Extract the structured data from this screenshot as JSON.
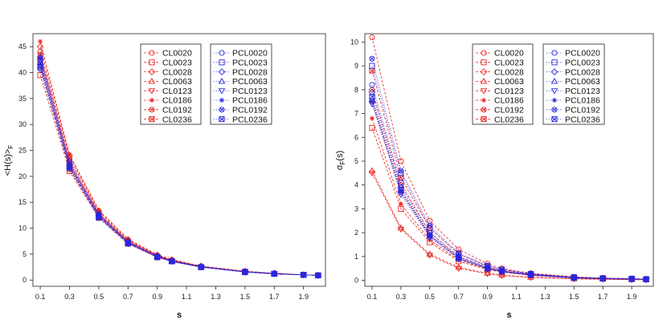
{
  "chart_data": [
    {
      "type": "line",
      "title": "",
      "xlabel": "s",
      "ylabel": "<H(s)>",
      "ylabel_sub": "F",
      "x": [
        0.1,
        0.3,
        0.5,
        0.7,
        0.9,
        1.0,
        1.2,
        1.5,
        1.7,
        1.9,
        2.0
      ],
      "xticks": [
        0.1,
        0.3,
        0.5,
        0.7,
        0.9,
        1.1,
        1.3,
        1.5,
        1.7,
        1.9
      ],
      "xtick_labels": [
        "0.1",
        "0.3",
        "0.5",
        "0.7",
        "0.9",
        "1.1",
        "1.3",
        "1.5",
        "1.7",
        "1.9"
      ],
      "yticks": [
        0,
        5,
        10,
        15,
        20,
        25,
        30,
        35,
        40,
        45
      ],
      "ytick_labels": [
        "0",
        "5",
        "10",
        "15",
        "20",
        "25",
        "30",
        "35",
        "40",
        "45"
      ],
      "xlim": [
        0.05,
        2.05
      ],
      "ylim": [
        -1.2,
        47.5
      ],
      "legend_position": "top-right",
      "series": [
        {
          "name": "CL0020",
          "group": "CL",
          "values": [
            44.0,
            23.5,
            13.0,
            7.6,
            4.7,
            3.8,
            2.6,
            1.6,
            1.3,
            1.0,
            0.9
          ]
        },
        {
          "name": "CL0023",
          "group": "CL",
          "values": [
            39.5,
            21.0,
            12.0,
            7.0,
            4.4,
            3.6,
            2.5,
            1.6,
            1.2,
            1.0,
            0.9
          ]
        },
        {
          "name": "CL0028",
          "group": "CL",
          "values": [
            45.0,
            24.0,
            13.3,
            7.8,
            4.8,
            3.9,
            2.7,
            1.7,
            1.3,
            1.0,
            0.9
          ]
        },
        {
          "name": "CL0063",
          "group": "CL",
          "values": [
            43.0,
            22.5,
            12.7,
            7.4,
            4.6,
            3.7,
            2.6,
            1.6,
            1.3,
            1.0,
            0.9
          ]
        },
        {
          "name": "CL0123",
          "group": "CL",
          "values": [
            42.0,
            22.0,
            12.5,
            7.3,
            4.5,
            3.7,
            2.5,
            1.6,
            1.2,
            1.0,
            0.9
          ]
        },
        {
          "name": "CL0186",
          "group": "CL",
          "values": [
            46.0,
            24.2,
            13.5,
            7.9,
            4.9,
            4.0,
            2.7,
            1.7,
            1.3,
            1.0,
            0.9
          ]
        },
        {
          "name": "CL0192",
          "group": "CL",
          "values": [
            43.5,
            23.0,
            12.8,
            7.5,
            4.7,
            3.8,
            2.6,
            1.6,
            1.3,
            1.0,
            0.9
          ]
        },
        {
          "name": "CL0236",
          "group": "CL",
          "values": [
            41.0,
            21.5,
            12.2,
            7.2,
            4.5,
            3.6,
            2.5,
            1.6,
            1.2,
            1.0,
            0.9
          ]
        },
        {
          "name": "PCL0020",
          "group": "PCL",
          "values": [
            42.5,
            22.3,
            12.5,
            7.3,
            4.6,
            3.7,
            2.6,
            1.6,
            1.2,
            1.0,
            0.9
          ]
        },
        {
          "name": "PCL0023",
          "group": "PCL",
          "values": [
            41.5,
            22.0,
            12.3,
            7.2,
            4.5,
            3.6,
            2.5,
            1.6,
            1.2,
            1.0,
            0.9
          ]
        },
        {
          "name": "PCL0028",
          "group": "PCL",
          "values": [
            43.0,
            22.8,
            12.7,
            7.4,
            4.6,
            3.7,
            2.6,
            1.6,
            1.3,
            1.0,
            0.9
          ]
        },
        {
          "name": "PCL0063",
          "group": "PCL",
          "values": [
            42.0,
            21.8,
            12.2,
            7.1,
            4.5,
            3.6,
            2.5,
            1.6,
            1.2,
            1.0,
            0.9
          ]
        },
        {
          "name": "PCL0123",
          "group": "PCL",
          "values": [
            40.5,
            21.5,
            12.0,
            7.0,
            4.4,
            3.6,
            2.5,
            1.5,
            1.2,
            1.0,
            0.9
          ]
        },
        {
          "name": "PCL0186",
          "group": "PCL",
          "values": [
            42.8,
            22.5,
            12.6,
            7.3,
            4.6,
            3.7,
            2.6,
            1.6,
            1.3,
            1.0,
            0.9
          ]
        },
        {
          "name": "PCL0192",
          "group": "PCL",
          "values": [
            41.8,
            22.1,
            12.4,
            7.2,
            4.5,
            3.6,
            2.5,
            1.6,
            1.2,
            1.0,
            0.9
          ]
        },
        {
          "name": "PCL0236",
          "group": "PCL",
          "values": [
            41.0,
            21.7,
            12.1,
            7.1,
            4.4,
            3.6,
            2.5,
            1.5,
            1.2,
            1.0,
            0.9
          ]
        }
      ]
    },
    {
      "type": "line",
      "title": "",
      "xlabel": "s",
      "ylabel": "σ",
      "ylabel_sub": "F",
      "ylabel_suffix": "(s)",
      "x": [
        0.1,
        0.3,
        0.5,
        0.7,
        0.9,
        1.0,
        1.2,
        1.5,
        1.7,
        1.9,
        2.0
      ],
      "xticks": [
        0.1,
        0.3,
        0.5,
        0.7,
        0.9,
        1.1,
        1.3,
        1.5,
        1.7,
        1.9
      ],
      "xtick_labels": [
        "0.1",
        "0.3",
        "0.5",
        "0.7",
        "0.9",
        "1.1",
        "1.3",
        "1.5",
        "1.7",
        "1.9"
      ],
      "yticks": [
        0,
        1,
        2,
        3,
        4,
        5,
        6,
        7,
        8,
        9,
        10
      ],
      "ytick_labels": [
        "0",
        "1",
        "2",
        "3",
        "4",
        "5",
        "6",
        "7",
        "8",
        "9",
        "10"
      ],
      "xlim": [
        0.05,
        2.05
      ],
      "ylim": [
        -0.25,
        10.35
      ],
      "legend_position": "top-right",
      "series": [
        {
          "name": "CL0020",
          "group": "CL",
          "values": [
            10.2,
            5.0,
            2.5,
            1.3,
            0.7,
            0.5,
            0.3,
            0.15,
            0.1,
            0.07,
            0.05
          ]
        },
        {
          "name": "CL0023",
          "group": "CL",
          "values": [
            6.4,
            3.0,
            1.6,
            0.8,
            0.45,
            0.35,
            0.2,
            0.1,
            0.07,
            0.05,
            0.04
          ]
        },
        {
          "name": "CL0028",
          "group": "CL",
          "values": [
            8.0,
            4.0,
            2.0,
            1.0,
            0.55,
            0.4,
            0.25,
            0.12,
            0.08,
            0.06,
            0.05
          ]
        },
        {
          "name": "CL0063",
          "group": "CL",
          "values": [
            4.6,
            2.2,
            1.1,
            0.55,
            0.3,
            0.22,
            0.13,
            0.07,
            0.05,
            0.03,
            0.03
          ]
        },
        {
          "name": "CL0123",
          "group": "CL",
          "values": [
            4.5,
            2.15,
            1.05,
            0.5,
            0.28,
            0.2,
            0.12,
            0.06,
            0.04,
            0.03,
            0.02
          ]
        },
        {
          "name": "CL0186",
          "group": "CL",
          "values": [
            6.8,
            3.2,
            1.7,
            0.85,
            0.48,
            0.36,
            0.22,
            0.1,
            0.07,
            0.05,
            0.04
          ]
        },
        {
          "name": "CL0192",
          "group": "CL",
          "values": [
            7.5,
            3.7,
            1.9,
            0.95,
            0.5,
            0.38,
            0.23,
            0.11,
            0.08,
            0.06,
            0.05
          ]
        },
        {
          "name": "CL0236",
          "group": "CL",
          "values": [
            8.8,
            4.3,
            2.2,
            1.1,
            0.6,
            0.45,
            0.27,
            0.13,
            0.09,
            0.07,
            0.05
          ]
        },
        {
          "name": "PCL0020",
          "group": "PCL",
          "values": [
            8.2,
            4.1,
            2.0,
            1.0,
            0.55,
            0.4,
            0.25,
            0.12,
            0.08,
            0.06,
            0.05
          ]
        },
        {
          "name": "PCL0023",
          "group": "PCL",
          "values": [
            9.0,
            4.5,
            2.2,
            1.1,
            0.6,
            0.45,
            0.27,
            0.13,
            0.09,
            0.07,
            0.05
          ]
        },
        {
          "name": "PCL0028",
          "group": "PCL",
          "values": [
            7.9,
            3.9,
            1.9,
            0.95,
            0.52,
            0.39,
            0.24,
            0.11,
            0.08,
            0.06,
            0.05
          ]
        },
        {
          "name": "PCL0063",
          "group": "PCL",
          "values": [
            7.6,
            3.8,
            1.85,
            0.92,
            0.5,
            0.38,
            0.23,
            0.11,
            0.08,
            0.06,
            0.05
          ]
        },
        {
          "name": "PCL0123",
          "group": "PCL",
          "values": [
            7.4,
            3.6,
            1.8,
            0.9,
            0.48,
            0.36,
            0.22,
            0.1,
            0.07,
            0.05,
            0.04
          ]
        },
        {
          "name": "PCL0186",
          "group": "PCL",
          "values": [
            7.5,
            3.7,
            1.85,
            0.9,
            0.5,
            0.37,
            0.22,
            0.1,
            0.07,
            0.05,
            0.04
          ]
        },
        {
          "name": "PCL0192",
          "group": "PCL",
          "values": [
            9.3,
            4.6,
            2.3,
            1.15,
            0.62,
            0.46,
            0.28,
            0.13,
            0.09,
            0.07,
            0.05
          ]
        },
        {
          "name": "PCL0236",
          "group": "PCL",
          "values": [
            7.7,
            3.8,
            1.9,
            0.93,
            0.5,
            0.38,
            0.23,
            0.11,
            0.08,
            0.06,
            0.05
          ]
        }
      ]
    }
  ],
  "colors": {
    "CL": "#e8231f",
    "PCL": "#2727e0",
    "axis": "#222222"
  },
  "marker_icons": [
    "circle-marker",
    "square-marker",
    "diamond-marker",
    "triangle-up-marker",
    "triangle-down-marker",
    "asterisk-marker",
    "circle-x-marker",
    "square-x-marker"
  ]
}
